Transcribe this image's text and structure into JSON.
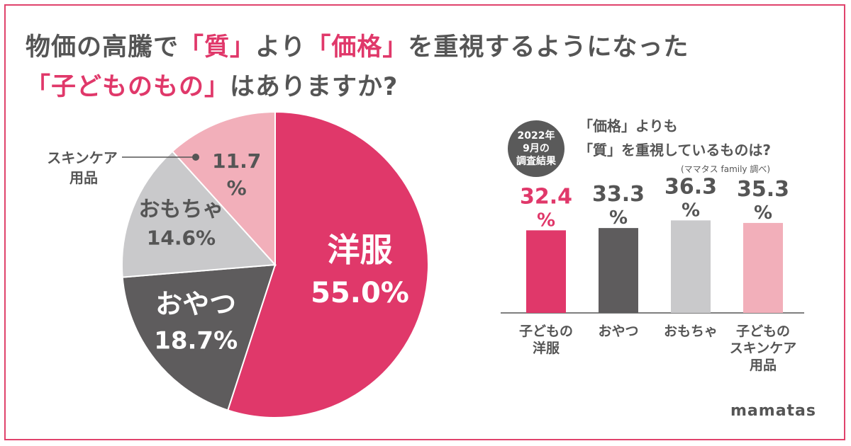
{
  "title": {
    "line1_a": "物価の高騰で",
    "line1_b": "「質」",
    "line1_c": "より",
    "line1_d": "「価格」",
    "line1_e": "を重視するようになった",
    "line2_a": "「子どものもの」",
    "line2_b": "はありますか?"
  },
  "colors": {
    "brand": "#e0386a",
    "dark_gray": "#5e5c5d",
    "light_gray": "#c9c9cb",
    "pink_light": "#f2afba",
    "text": "#555555"
  },
  "survey_badge": {
    "line1": "2022年",
    "line2": "9月の",
    "line3": "調査結果"
  },
  "question": {
    "line1": "「価格」よりも",
    "line2": "「質」を重視しているものは?",
    "source": "(ママタス family 調べ)"
  },
  "logo": "mamatas",
  "chart_data": [
    {
      "type": "pie",
      "slices": [
        {
          "label": "洋服",
          "value_text": "55.0%",
          "value": 55.0,
          "color": "#e0386a",
          "label_color": "#ffffff"
        },
        {
          "label": "おやつ",
          "value_text": "18.7%",
          "value": 18.7,
          "color": "#5e5c5d",
          "label_color": "#ffffff"
        },
        {
          "label": "おもちゃ",
          "value_text": "14.6%",
          "value": 14.6,
          "color": "#c9c9cb",
          "label_color": "#555555"
        },
        {
          "label": "スキンケア用品",
          "value_text": "11.7%",
          "value": 11.7,
          "color": "#f2afba",
          "label_color": "#555555"
        }
      ],
      "outside_label": {
        "line1": "スキンケア",
        "line2": "用品"
      }
    },
    {
      "type": "bar",
      "categories": [
        {
          "line1": "子どもの",
          "line2": "洋服",
          "line3": ""
        },
        {
          "line1": "おやつ",
          "line2": "",
          "line3": ""
        },
        {
          "line1": "おもちゃ",
          "line2": "",
          "line3": ""
        },
        {
          "line1": "子どもの",
          "line2": "スキンケア",
          "line3": "用品"
        }
      ],
      "values": [
        32.4,
        33.3,
        36.3,
        35.3
      ],
      "value_labels": [
        "32.4",
        "33.3",
        "36.3",
        "35.3"
      ],
      "unit": "%",
      "colors": [
        "#e0386a",
        "#5e5c5d",
        "#c9c9cb",
        "#f2afba"
      ],
      "label_colors": [
        "#e0386a",
        "#555555",
        "#555555",
        "#555555"
      ]
    }
  ]
}
